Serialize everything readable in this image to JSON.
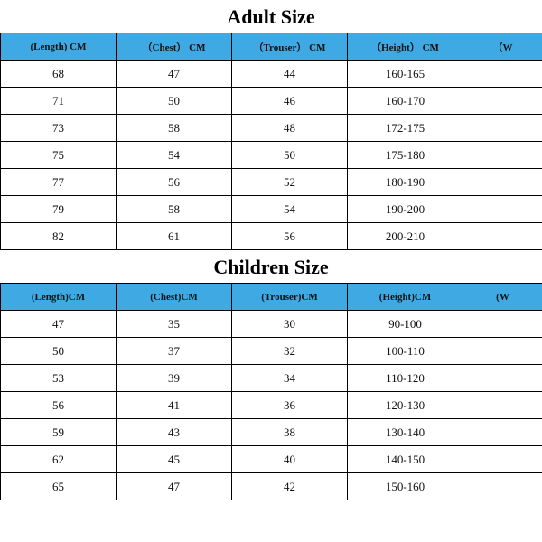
{
  "colors": {
    "header_bg": "#3ea9e2",
    "border": "#000000",
    "text": "#111111",
    "background": "#ffffff"
  },
  "typography": {
    "title_fontsize": 22,
    "title_weight": "bold",
    "cell_fontsize": 13,
    "header_fontsize": 11,
    "font_family": "Times New Roman"
  },
  "adult": {
    "title": "Adult Size",
    "columns": [
      "",
      "(Length) CM",
      "（Chest） CM",
      "（Trouser） CM",
      "（Height） CM",
      "（W"
    ],
    "rows": [
      [
        "",
        "68",
        "47",
        "44",
        "160-165",
        ""
      ],
      [
        "",
        "71",
        "50",
        "46",
        "160-170",
        ""
      ],
      [
        "",
        "73",
        "58",
        "48",
        "172-175",
        ""
      ],
      [
        "",
        "75",
        "54",
        "50",
        "175-180",
        ""
      ],
      [
        "",
        "77",
        "56",
        "52",
        "180-190",
        ""
      ],
      [
        "",
        "79",
        "58",
        "54",
        "190-200",
        ""
      ],
      [
        "",
        "82",
        "61",
        "56",
        "200-210",
        ""
      ]
    ]
  },
  "children": {
    "title": "Children Size",
    "columns": [
      "",
      "(Length)CM",
      "(Chest)CM",
      "(Trouser)CM",
      "(Height)CM",
      "(W"
    ],
    "rows": [
      [
        "",
        "47",
        "35",
        "30",
        "90-100",
        ""
      ],
      [
        "",
        "50",
        "37",
        "32",
        "100-110",
        ""
      ],
      [
        "",
        "53",
        "39",
        "34",
        "110-120",
        ""
      ],
      [
        "",
        "56",
        "41",
        "36",
        "120-130",
        ""
      ],
      [
        "",
        "59",
        "43",
        "38",
        "130-140",
        ""
      ],
      [
        "",
        "62",
        "45",
        "40",
        "140-150",
        ""
      ],
      [
        "",
        "65",
        "47",
        "42",
        "150-160",
        ""
      ]
    ]
  }
}
